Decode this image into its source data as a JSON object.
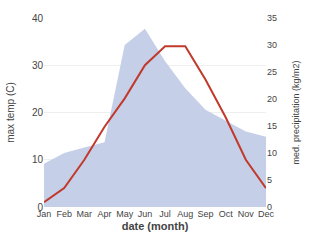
{
  "chart_data": {
    "type": "line",
    "xlabel": "date (month)",
    "ylabel": "max temp (C)",
    "y2label": "med. precipitation (kg/m2)",
    "categories": [
      "Jan",
      "Feb",
      "Mar",
      "Apr",
      "May",
      "Jun",
      "Jul",
      "Aug",
      "Sep",
      "Oct",
      "Nov",
      "Dec"
    ],
    "series": [
      {
        "type": "line",
        "color": "#c0392b",
        "values": [
          1,
          4,
          10,
          17,
          23,
          30,
          34,
          34,
          27,
          19,
          10,
          4
        ]
      },
      {
        "type": "area",
        "color": "#c5cfe8",
        "axis": "y2",
        "values": [
          8,
          10,
          11,
          12,
          30,
          33,
          27,
          22,
          18,
          16,
          14,
          13
        ]
      }
    ],
    "ylim": [
      0,
      40
    ],
    "yticks": [
      0,
      10,
      20,
      30,
      40
    ],
    "y2lim": [
      0,
      35
    ],
    "y2ticks": [
      0,
      5,
      10,
      15,
      20,
      25,
      30,
      35
    ],
    "grid": true
  }
}
